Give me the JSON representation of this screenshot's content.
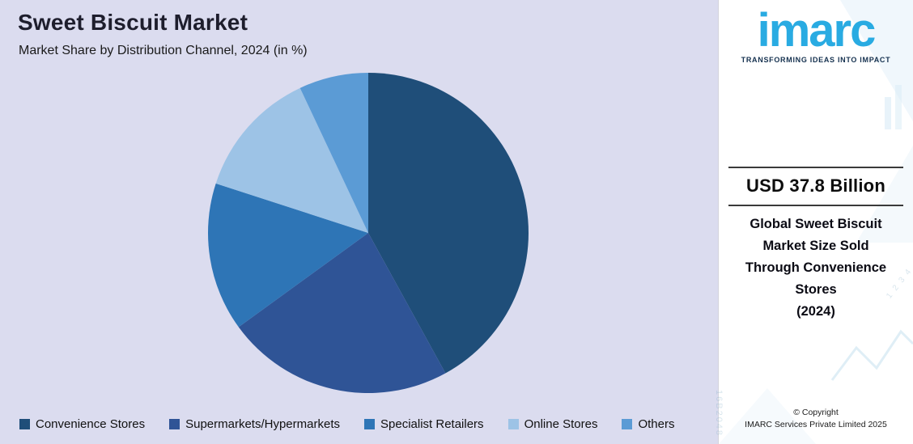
{
  "header": {
    "title": "Sweet Biscuit Market",
    "subtitle": "Market Share by Distribution Channel, 2024 (in %)"
  },
  "chart_data": {
    "type": "pie",
    "title": "Sweet Biscuit Market",
    "subtitle": "Market Share by Distribution Channel, 2024 (in %)",
    "categories": [
      "Convenience Stores",
      "Supermarkets/Hypermarkets",
      "Specialist Retailers",
      "Online Stores",
      "Others"
    ],
    "values": [
      42,
      23,
      15,
      13,
      7
    ],
    "colors": [
      "#1F4E79",
      "#2F5496",
      "#2E75B6",
      "#9DC3E6",
      "#5B9BD5"
    ],
    "start_angle_deg": 0,
    "direction": "clockwise",
    "legend_position": "bottom",
    "data_labels_shown": false
  },
  "right_panel": {
    "logo_text": "imarc",
    "logo_tagline": "TRANSFORMING IDEAS INTO IMPACT",
    "headline": "USD 37.8 Billion",
    "description_lines": [
      "Global Sweet Biscuit",
      "Market Size Sold",
      "Through Convenience",
      "Stores",
      "(2024)"
    ],
    "copyright_line1": "© Copyright",
    "copyright_line2": "IMARC Services Private Limited 2025",
    "watermark_digits": "1 2 3 4",
    "watermark_code": "16B2048"
  },
  "colors": {
    "left_background": "#DBDCEF",
    "panel_background": "#FFFFFF",
    "logo_blue": "#29ABE2",
    "title_text": "#1E1E2D"
  }
}
